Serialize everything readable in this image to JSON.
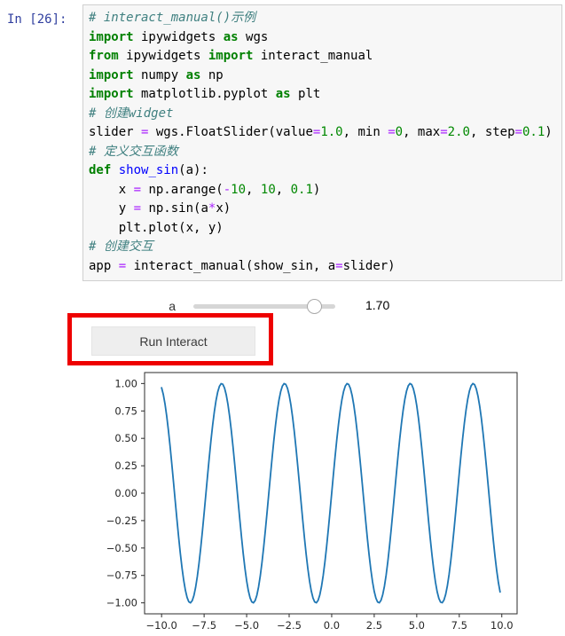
{
  "notebook": {
    "prompt": "In [26]:",
    "syntax_colors": {
      "keyword": "#008000",
      "comment": "#408080",
      "number": "#008800",
      "operator": "#AA22FF",
      "function_def": "#0000FF",
      "plain": "#000000",
      "prompt_blue": "#303F9F",
      "cell_background": "#f7f7f7",
      "cell_border": "#cfcfcf"
    },
    "code": {
      "lines": [
        [
          [
            "c",
            "# interact_manual()示例"
          ]
        ],
        [
          [
            "k",
            "import"
          ],
          [
            "p",
            " ipywidgets "
          ],
          [
            "k",
            "as"
          ],
          [
            "p",
            " wgs"
          ]
        ],
        [
          [
            "k",
            "from"
          ],
          [
            "p",
            " ipywidgets "
          ],
          [
            "k",
            "import"
          ],
          [
            "p",
            " interact_manual"
          ]
        ],
        [
          [
            "k",
            "import"
          ],
          [
            "p",
            " numpy "
          ],
          [
            "k",
            "as"
          ],
          [
            "p",
            " np"
          ]
        ],
        [
          [
            "k",
            "import"
          ],
          [
            "p",
            " matplotlib.pyplot "
          ],
          [
            "k",
            "as"
          ],
          [
            "p",
            " plt"
          ]
        ],
        [
          [
            "c",
            "# 创建widget"
          ]
        ],
        [
          [
            "p",
            "slider "
          ],
          [
            "o",
            "="
          ],
          [
            "p",
            " wgs.FloatSlider(value"
          ],
          [
            "o",
            "="
          ],
          [
            "n",
            "1.0"
          ],
          [
            "p",
            ", min "
          ],
          [
            "o",
            "="
          ],
          [
            "n",
            "0"
          ],
          [
            "p",
            ", max"
          ],
          [
            "o",
            "="
          ],
          [
            "n",
            "2.0"
          ],
          [
            "p",
            ", step"
          ],
          [
            "o",
            "="
          ],
          [
            "n",
            "0.1"
          ],
          [
            "p",
            ")"
          ]
        ],
        [
          [
            "c",
            "# 定义交互函数"
          ]
        ],
        [
          [
            "k",
            "def"
          ],
          [
            "p",
            " "
          ],
          [
            "d",
            "show_sin"
          ],
          [
            "p",
            "(a):"
          ]
        ],
        [
          [
            "p",
            "    x "
          ],
          [
            "o",
            "="
          ],
          [
            "p",
            " np.arange("
          ],
          [
            "o",
            "-"
          ],
          [
            "n",
            "10"
          ],
          [
            "p",
            ", "
          ],
          [
            "n",
            "10"
          ],
          [
            "p",
            ", "
          ],
          [
            "n",
            "0.1"
          ],
          [
            "p",
            ")"
          ]
        ],
        [
          [
            "p",
            "    y "
          ],
          [
            "o",
            "="
          ],
          [
            "p",
            " np.sin(a"
          ],
          [
            "o",
            "*"
          ],
          [
            "p",
            "x)"
          ]
        ],
        [
          [
            "p",
            "    plt.plot(x, y)"
          ]
        ],
        [
          [
            "c",
            "# 创建交互"
          ]
        ],
        [
          [
            "p",
            "app "
          ],
          [
            "o",
            "="
          ],
          [
            "p",
            " interact_manual(show_sin, a"
          ],
          [
            "o",
            "="
          ],
          [
            "p",
            "slider)"
          ]
        ]
      ]
    }
  },
  "widgets": {
    "slider": {
      "label": "a",
      "value": 1.7,
      "min": 0,
      "max": 2.0,
      "step": 0.1,
      "readout": "1.70",
      "percent": 85
    },
    "run_button": {
      "label": "Run Interact",
      "background": "#eeeeee"
    }
  },
  "annotation": {
    "shape": "rectangle",
    "color": "#ee0000"
  },
  "chart_data": {
    "type": "line",
    "title": "",
    "xlabel": "",
    "ylabel": "",
    "grid": false,
    "legend": null,
    "xlim": [
      -11.0,
      10.9
    ],
    "ylim": [
      -1.1,
      1.1
    ],
    "xticks": [
      -10.0,
      -7.5,
      -5.0,
      -2.5,
      0.0,
      2.5,
      5.0,
      7.5,
      10.0
    ],
    "xtick_labels": [
      "−10.0",
      "−7.5",
      "−5.0",
      "−2.5",
      "0.0",
      "2.5",
      "5.0",
      "7.5",
      "10.0"
    ],
    "yticks": [
      1.0,
      0.75,
      0.5,
      0.25,
      0.0,
      -0.25,
      -0.5,
      -0.75,
      -1.0
    ],
    "ytick_labels": [
      "1.00",
      "0.75",
      "0.50",
      "0.25",
      "0.00",
      "−0.25",
      "−0.50",
      "−0.75",
      "−1.00"
    ],
    "series": [
      {
        "name": "sin(a*x)",
        "function": "sin",
        "amplitude": 1.0,
        "a": 1.7,
        "x_start": -10,
        "x_end": 10,
        "x_step": 0.1,
        "color": "#1f77b4",
        "line_width": 1.8
      }
    ],
    "spine_color": "#2b2b2b",
    "background": "#ffffff"
  }
}
